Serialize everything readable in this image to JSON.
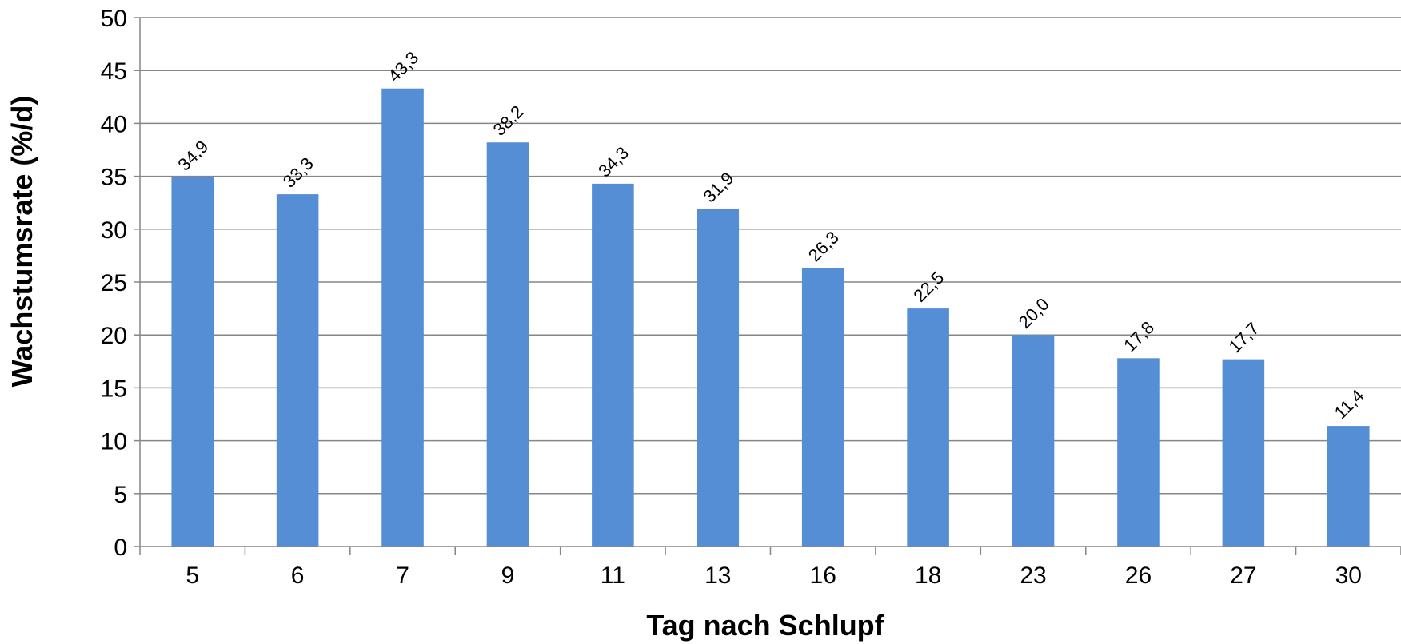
{
  "chart_data": {
    "type": "bar",
    "categories": [
      "5",
      "6",
      "7",
      "9",
      "11",
      "13",
      "16",
      "18",
      "23",
      "26",
      "27",
      "30"
    ],
    "values": [
      34.9,
      33.3,
      43.3,
      38.2,
      34.3,
      31.9,
      26.3,
      22.5,
      20.0,
      17.8,
      17.7,
      11.4
    ],
    "data_labels": [
      "34,9",
      "33,3",
      "43,3",
      "38,2",
      "34,3",
      "31,9",
      "26,3",
      "22,5",
      "20,0",
      "17,8",
      "17,7",
      "11,4"
    ],
    "y_ticks": [
      "0",
      "5",
      "10",
      "15",
      "20",
      "25",
      "30",
      "35",
      "40",
      "45",
      "50"
    ],
    "xlabel": "Tag nach Schlupf",
    "ylabel": "Wachstumsrate (%/d)",
    "ylim": [
      0,
      50
    ],
    "grid": true,
    "legend": "none",
    "colors": {
      "bar": "#558ED5",
      "grid": "#868686",
      "axis": "#868686"
    }
  }
}
